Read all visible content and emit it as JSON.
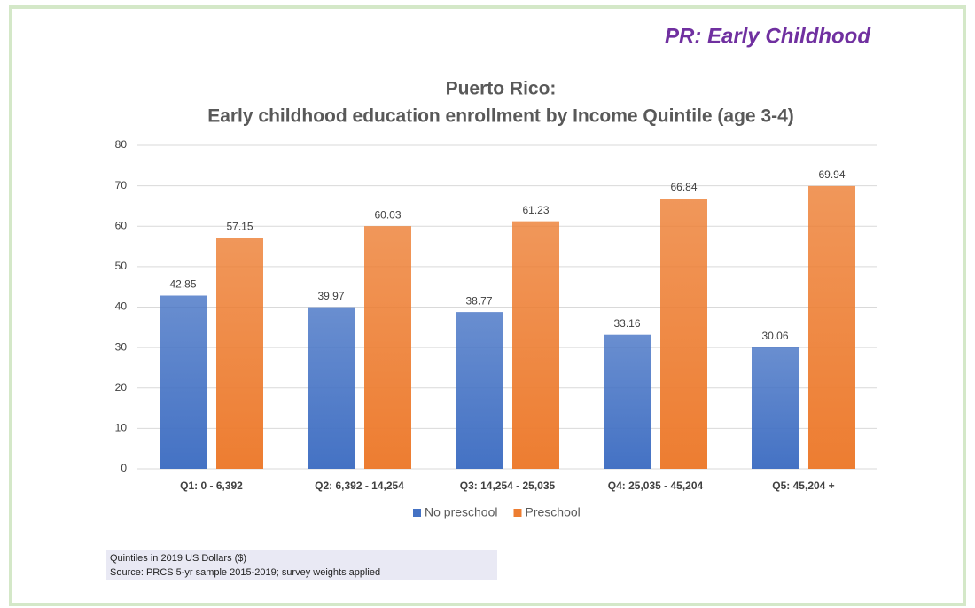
{
  "page_header": "PR: Early Childhood",
  "chart_data": {
    "type": "bar",
    "title": "Puerto Rico:",
    "subtitle": "Early childhood education enrollment by Income Quintile (age 3-4)",
    "categories": [
      "Q1: 0 - 6,392",
      "Q2: 6,392 - 14,254",
      "Q3: 14,254 - 25,035",
      "Q4: 25,035 - 45,204",
      "Q5: 45,204 +"
    ],
    "series": [
      {
        "name": "No preschool",
        "color": "#4472c4",
        "values": [
          42.85,
          39.97,
          38.77,
          33.16,
          30.06
        ]
      },
      {
        "name": "Preschool",
        "color": "#ed7d31",
        "values": [
          57.15,
          60.03,
          61.23,
          66.84,
          69.94
        ]
      }
    ],
    "ylim": [
      0,
      80
    ],
    "yticks": [
      0,
      10,
      20,
      30,
      40,
      50,
      60,
      70,
      80
    ],
    "grid": true,
    "legend": "bottom",
    "annotations": [
      "Quintiles in 2019 US Dollars ($)",
      "Source:  PRCS 5-yr sample 2015-2019; survey weights applied"
    ]
  }
}
